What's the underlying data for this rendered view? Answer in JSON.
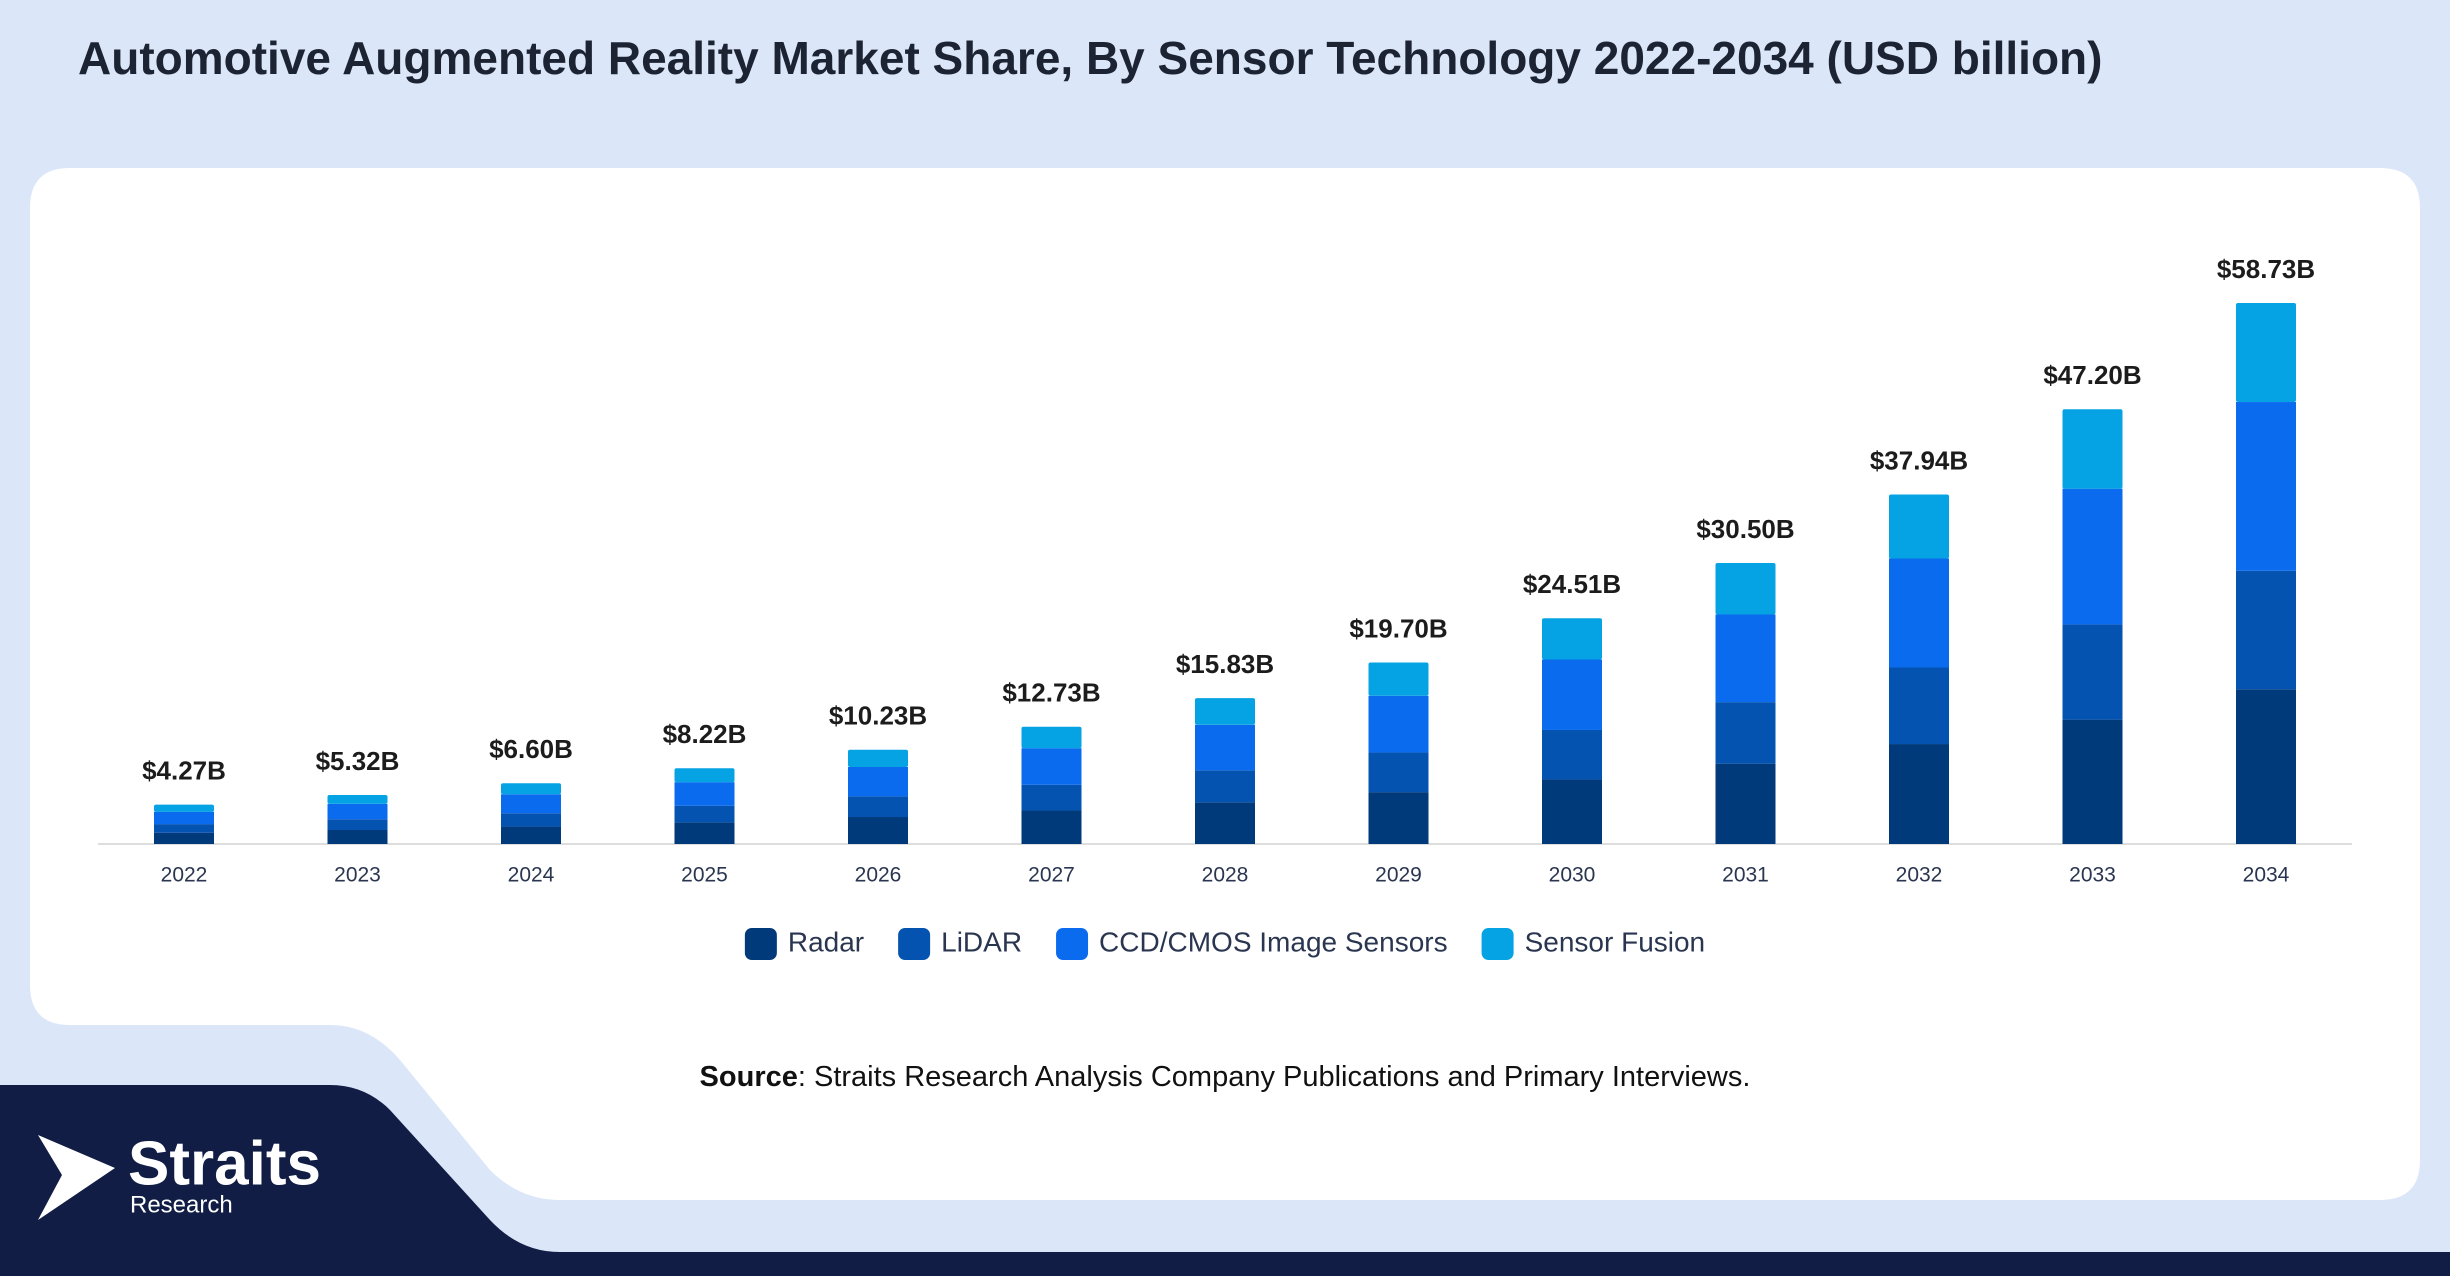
{
  "chart_data": {
    "type": "stacked_bar",
    "title": "Automotive Augmented Reality Market Share, By Sensor Technology 2022-2034 (USD billion)",
    "categories": [
      "2022",
      "2023",
      "2024",
      "2025",
      "2026",
      "2027",
      "2028",
      "2029",
      "2030",
      "2031",
      "2032",
      "2033",
      "2034"
    ],
    "series": [
      {
        "name": "Radar",
        "color": "#003a7a",
        "values": [
          1.22,
          1.52,
          1.89,
          2.35,
          2.93,
          3.64,
          4.53,
          5.63,
          7.01,
          8.72,
          10.85,
          13.5,
          16.8
        ]
      },
      {
        "name": "LiDAR",
        "color": "#0553b1",
        "values": [
          0.94,
          1.17,
          1.45,
          1.8,
          2.24,
          2.79,
          3.47,
          4.31,
          5.37,
          6.68,
          8.31,
          10.34,
          12.86
        ]
      },
      {
        "name": "CCD/CMOS Image Sensors",
        "color": "#0a6bef",
        "values": [
          1.33,
          1.66,
          2.06,
          2.56,
          3.19,
          3.97,
          4.94,
          6.15,
          7.65,
          9.52,
          11.84,
          14.73,
          18.32
        ]
      },
      {
        "name": "Sensor Fusion",
        "color": "#05a3e3",
        "values": [
          0.78,
          0.97,
          1.2,
          1.51,
          1.87,
          2.33,
          2.89,
          3.61,
          4.48,
          5.58,
          6.94,
          8.63,
          10.75
        ]
      }
    ],
    "totals": {
      "values": [
        4.27,
        5.32,
        6.6,
        8.22,
        10.23,
        12.73,
        15.83,
        19.7,
        24.51,
        30.5,
        37.94,
        47.2,
        58.73
      ],
      "value_labels": [
        "$4.27B",
        "$5.32B",
        "$6.60B",
        "$8.22B",
        "$10.23B",
        "$12.73B",
        "$15.83B",
        "$19.70B",
        "$24.51B",
        "$30.50B",
        "$37.94B",
        "$47.20B",
        "$58.73B"
      ]
    },
    "legend": "bottom",
    "source_label": "Source",
    "source_text": ": Straits Research Analysis Company Publications and Primary Interviews.",
    "logo": {
      "name": "Straits",
      "subtitle": "Research"
    }
  }
}
